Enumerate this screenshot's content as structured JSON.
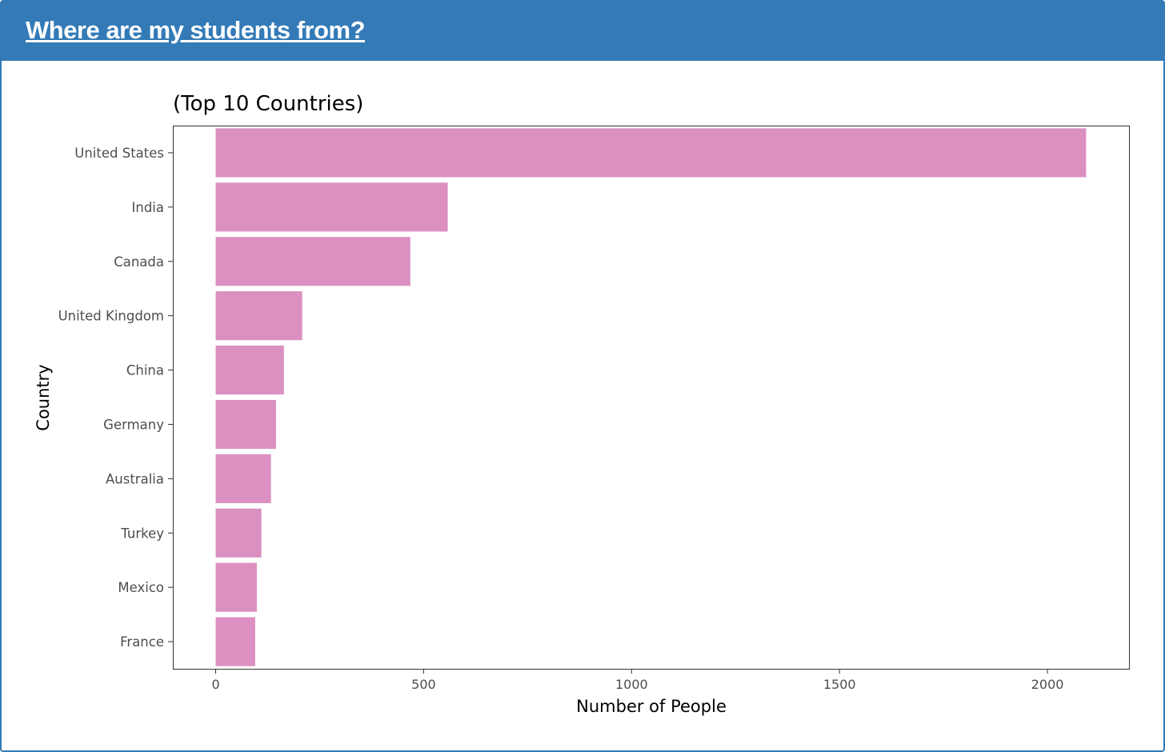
{
  "panel": {
    "title": "Where are my students from?"
  },
  "chart_data": {
    "type": "bar",
    "orientation": "horizontal",
    "title": "(Top 10 Countries)",
    "xlabel": "Number of People",
    "ylabel": "Country",
    "categories": [
      "United States",
      "India",
      "Canada",
      "United Kingdom",
      "China",
      "Germany",
      "Australia",
      "Turkey",
      "Mexico",
      "France"
    ],
    "values": [
      2093,
      558,
      468,
      208,
      164,
      145,
      133,
      110,
      99,
      95
    ],
    "xlim": [
      -103,
      2196
    ],
    "xticks": [
      0,
      500,
      1000,
      1500,
      2000
    ],
    "xtick_labels": [
      "0",
      "500",
      "1000",
      "1500",
      "2000"
    ],
    "grid": false,
    "legend": "none",
    "bar_color": "#db90c1",
    "panel_border_color": "#333333"
  }
}
